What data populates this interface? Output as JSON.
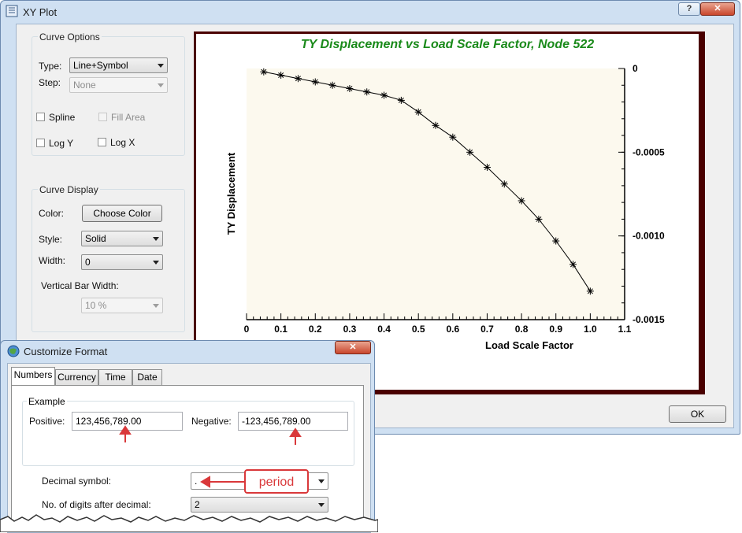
{
  "xy_plot": {
    "title": "XY Plot",
    "title_buttons": {
      "help": "?",
      "close": "✕"
    },
    "curve_options": {
      "group_label": "Curve Options",
      "type_label": "Type:",
      "type_value": "Line+Symbol",
      "step_label": "Step:",
      "step_value": "None",
      "spline_label": "Spline",
      "fill_area_label": "Fill Area",
      "log_y_label": "Log Y",
      "log_x_label": "Log X"
    },
    "curve_display": {
      "group_label": "Curve Display",
      "color_label": "Color:",
      "choose_color_button": "Choose Color",
      "style_label": "Style:",
      "style_value": "Solid",
      "width_label": "Width:",
      "width_value": "0",
      "vbar_width_label": "Vertical Bar Width:",
      "vbar_width_value": "10 %"
    },
    "ok_button": "OK"
  },
  "chart_data": {
    "type": "line",
    "title": "TY Displacement  vs Load Scale Factor, Node 522",
    "xlabel": "Load Scale Factor",
    "ylabel": "TY Displacement",
    "xlim": [
      0,
      1.1
    ],
    "ylim": [
      -0.0015,
      0
    ],
    "x_ticks": [
      "0",
      "0.1",
      "0.2",
      "0.3",
      "0.4",
      "0.5",
      "0.6",
      "0.7",
      "0.8",
      "0.9",
      "1.0",
      "1.1"
    ],
    "y_ticks": [
      {
        "value": 0,
        "label": "0"
      },
      {
        "value": -0.0005,
        "label": "-0.0005"
      },
      {
        "value": -0.001,
        "label": "-0.0010"
      },
      {
        "value": -0.0015,
        "label": "-0.0015"
      }
    ],
    "y_axis_side": "right",
    "marker": "asterisk",
    "colors": {
      "title": "#1a8a1a",
      "plot_bg": "#fcf9ee",
      "frame": "#4a0000",
      "line": "#000000"
    },
    "series": [
      {
        "x": [
          0.05,
          0.1,
          0.15,
          0.2,
          0.25,
          0.3,
          0.35,
          0.4,
          0.45,
          0.5,
          0.55,
          0.6,
          0.65,
          0.7,
          0.75,
          0.8,
          0.85,
          0.9,
          0.95,
          1.0
        ],
        "y": [
          -2e-05,
          -4e-05,
          -6e-05,
          -8e-05,
          -0.0001,
          -0.00012,
          -0.00014,
          -0.00016,
          -0.00019,
          -0.00026,
          -0.00034,
          -0.00041,
          -0.0005,
          -0.00059,
          -0.00069,
          -0.00079,
          -0.0009,
          -0.00103,
          -0.00117,
          -0.00133
        ]
      }
    ]
  },
  "customize_format": {
    "title": "Customize Format",
    "close": "✕",
    "tabs": [
      "Numbers",
      "Currency",
      "Time",
      "Date"
    ],
    "example_label": "Example",
    "positive_label": "Positive:",
    "positive_value": "123,456,789.00",
    "negative_label": "Negative:",
    "negative_value": "-123,456,789.00",
    "decimal_symbol_label": "Decimal symbol:",
    "decimal_symbol_value": ".",
    "annotation": "period",
    "digits_after_decimal_label": "No. of digits after decimal:",
    "digits_after_decimal_value": "2"
  }
}
